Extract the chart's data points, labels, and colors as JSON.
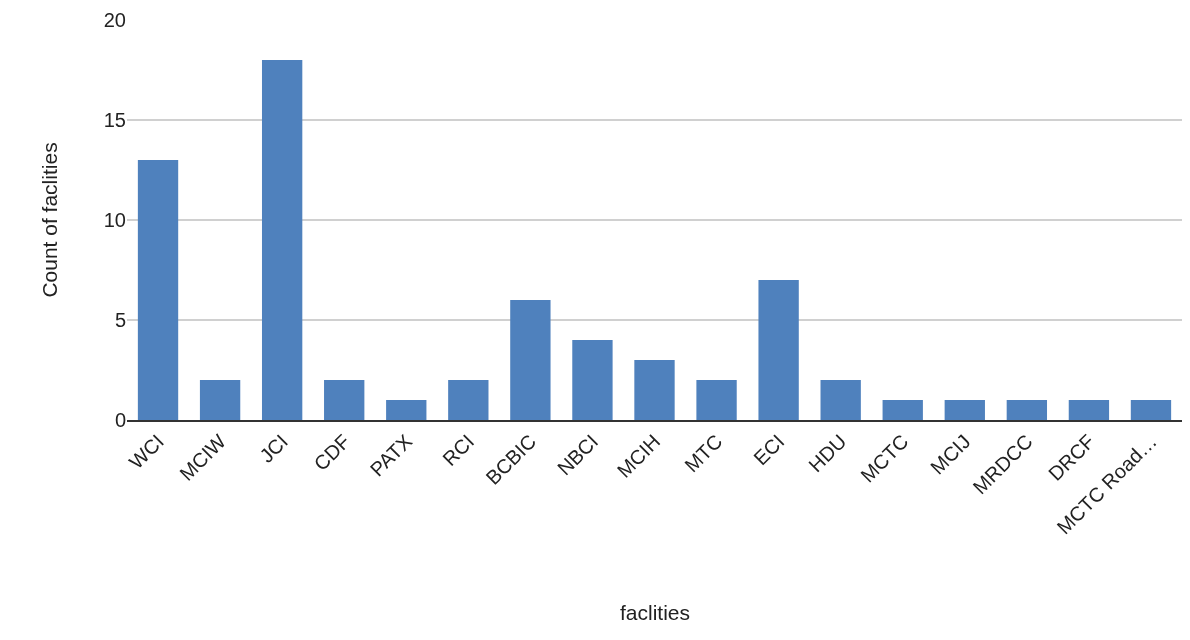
{
  "chart_data": {
    "type": "bar",
    "xlabel": "faclities",
    "ylabel": "Count of faclities",
    "categories": [
      "WCI",
      "MCIW",
      "JCI",
      "CDF",
      "PATX",
      "RCI",
      "BCBIC",
      "NBCI",
      "MCIH",
      "MTC",
      "ECI",
      "HDU",
      "MCTC",
      "MCIJ",
      "MRDCC",
      "DRCF",
      "MCTC Road…"
    ],
    "values": [
      13,
      2,
      18,
      2,
      1,
      2,
      6,
      4,
      3,
      2,
      7,
      2,
      1,
      1,
      1,
      1,
      1
    ],
    "color": "#4f81bd",
    "ylim": [
      0,
      20
    ],
    "yticks": [
      0,
      5,
      10,
      15,
      20
    ],
    "grid": "y"
  }
}
